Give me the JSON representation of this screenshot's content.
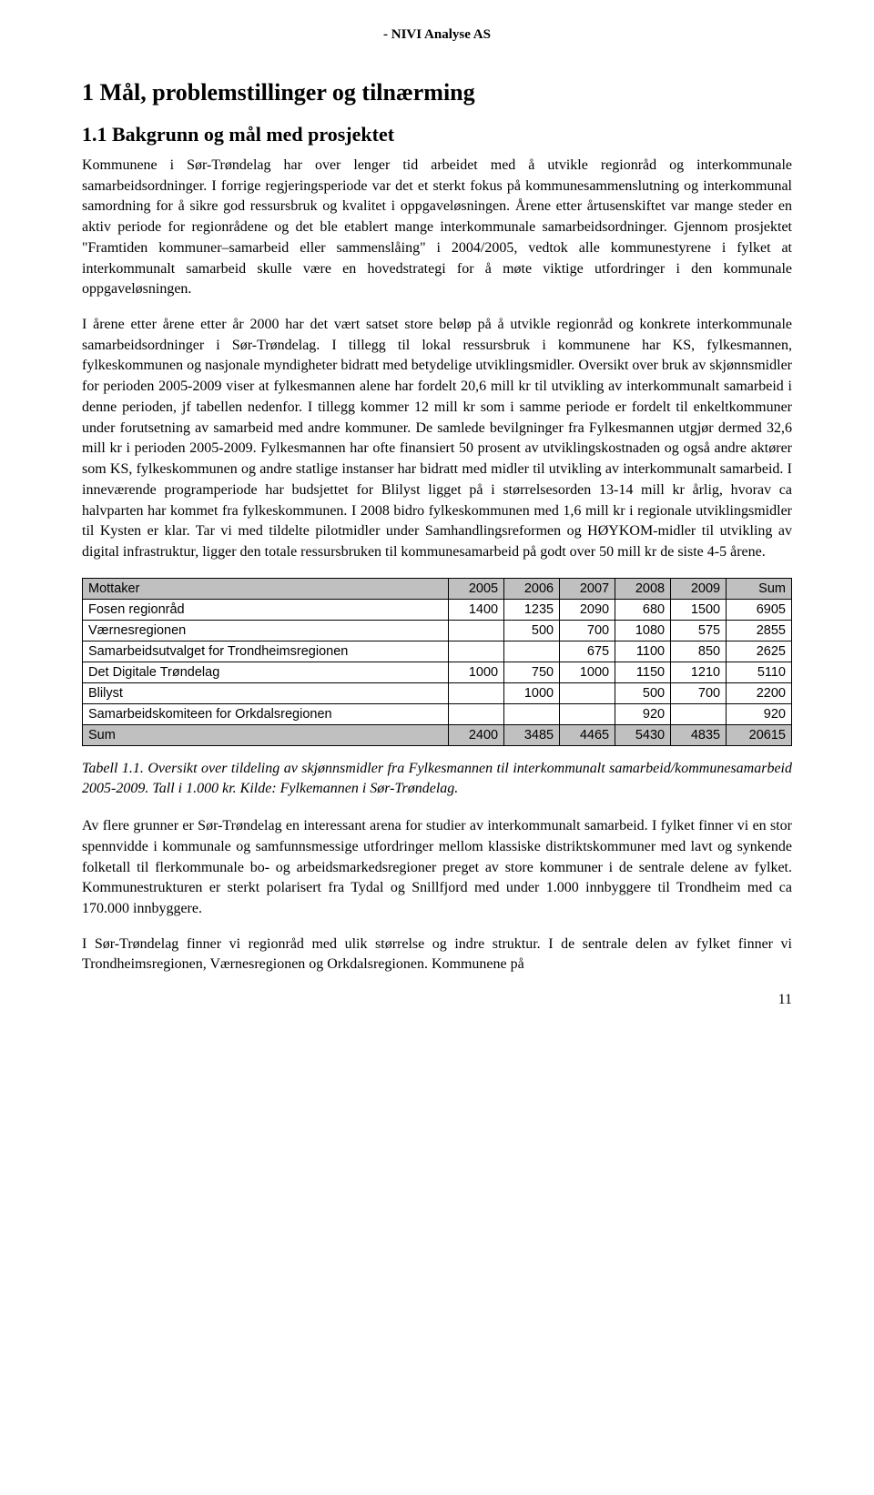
{
  "header": {
    "brand": "- NIVI Analyse AS"
  },
  "headings": {
    "h1": "1 Mål, problemstillinger og tilnærming",
    "h2": "1.1 Bakgrunn og mål med prosjektet"
  },
  "paragraphs": {
    "p1": "Kommunene i Sør-Trøndelag har over lenger tid arbeidet med å utvikle regionråd og interkommunale samarbeidsordninger. I forrige regjeringsperiode var det et sterkt fokus på kommunesammenslutning og interkommunal samordning for å sikre god ressursbruk og kvalitet i oppgaveløsningen. Årene etter årtusenskiftet var mange steder en aktiv periode for regionrådene og det ble etablert mange interkommunale samarbeidsordninger. Gjennom prosjektet \"Framtiden kommuner–samarbeid eller sammenslåing\" i 2004/2005, vedtok alle kommunestyrene i fylket at interkommunalt samarbeid skulle være en hovedstrategi for å møte viktige utfordringer i den kommunale oppgaveløsningen.",
    "p2": "I årene etter årene etter år 2000 har det vært satset store beløp på å utvikle regionråd og konkrete interkommunale samarbeidsordninger i Sør-Trøndelag. I tillegg til lokal ressursbruk i kommunene har KS, fylkesmannen, fylkeskommunen og nasjonale myndigheter bidratt med betydelige utviklingsmidler. Oversikt over bruk av skjønnsmidler for perioden 2005-2009 viser at fylkesmannen alene har fordelt 20,6 mill kr til utvikling av interkommunalt samarbeid i denne perioden, jf tabellen nedenfor. I tillegg kommer 12 mill kr som i samme periode er fordelt til enkeltkommuner under forutsetning av samarbeid med andre kommuner. De samlede bevilgninger fra Fylkesmannen utgjør dermed 32,6 mill kr i perioden 2005-2009. Fylkesmannen har ofte finansiert 50 prosent av utviklingskostnaden og også andre aktører som KS, fylkeskommunen og andre statlige instanser har bidratt med midler til utvikling av interkommunalt samarbeid. I inneværende programperiode har budsjettet for Blilyst ligget på i størrelsesorden 13-14 mill kr årlig, hvorav ca halvparten har kommet fra fylkeskommunen. I 2008 bidro fylkeskommunen med 1,6 mill kr i regionale utviklingsmidler til Kysten er klar. Tar vi med tildelte pilotmidler under Samhandlingsreformen og HØYKOM-midler til utvikling av digital infrastruktur, ligger den totale ressursbruken til kommunesamarbeid på godt over 50 mill kr de siste 4-5 årene.",
    "p3": "Av flere grunner er Sør-Trøndelag en interessant arena for studier av interkommunalt samarbeid. I fylket finner vi en stor spennvidde i kommunale og samfunnsmessige utfordringer mellom klassiske distriktskommuner med lavt og synkende folketall til flerkommunale bo- og arbeidsmarkedsregioner preget av store kommuner i de sentrale delene av fylket. Kommunestrukturen er sterkt polarisert fra Tydal og Snillfjord med under 1.000 innbyggere til Trondheim med ca 170.000 innbyggere.",
    "p4": "I Sør-Trøndelag finner vi regionråd med ulik størrelse og indre struktur. I de sentrale delen av fylket finner vi Trondheimsregionen, Værnesregionen og Orkdalsregionen. Kommunene på"
  },
  "table": {
    "columns": [
      "Mottaker",
      "2005",
      "2006",
      "2007",
      "2008",
      "2009",
      "Sum"
    ],
    "rows": [
      [
        "Fosen regionråd",
        "1400",
        "1235",
        "2090",
        "680",
        "1500",
        "6905"
      ],
      [
        "Værnesregionen",
        "",
        "500",
        "700",
        "1080",
        "575",
        "2855"
      ],
      [
        "Samarbeidsutvalget for Trondheimsregionen",
        "",
        "",
        "675",
        "1100",
        "850",
        "2625"
      ],
      [
        "Det Digitale Trøndelag",
        "1000",
        "750",
        "1000",
        "1150",
        "1210",
        "5110"
      ],
      [
        "Blilyst",
        "",
        "1000",
        "",
        "500",
        "700",
        "2200"
      ],
      [
        "Samarbeidskomiteen for Orkdalsregionen",
        "",
        "",
        "",
        "920",
        "",
        "920"
      ]
    ],
    "sum_row": [
      "Sum",
      "2400",
      "3485",
      "4465",
      "5430",
      "4835",
      "20615"
    ],
    "header_bg": "#c0c0c0",
    "border_color": "#000000"
  },
  "caption": "Tabell 1.1. Oversikt over tildeling av skjønnsmidler fra Fylkesmannen til interkommunalt samarbeid/kommunesamarbeid 2005-2009. Tall i 1.000 kr. Kilde: Fylkemannen i Sør-Trøndelag.",
  "page_number": "11"
}
